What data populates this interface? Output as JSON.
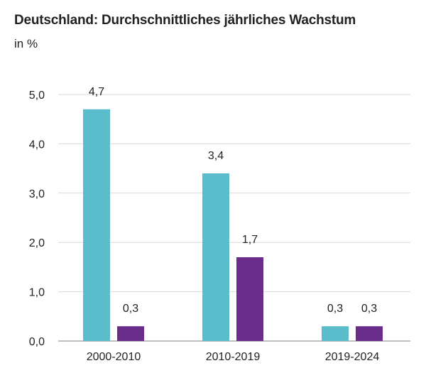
{
  "chart_data": {
    "type": "bar",
    "title": "Deutschland: Durchschnittliches jährliches Wachstum",
    "subtitle": "in %",
    "categories": [
      "2000-2010",
      "2010-2019",
      "2019-2024"
    ],
    "series": [
      {
        "values": [
          4.7,
          3.4,
          0.3
        ],
        "labels": [
          "4,7",
          "3,4",
          "0,3"
        ],
        "color": "#5bbccb"
      },
      {
        "values": [
          0.3,
          1.7,
          0.3
        ],
        "labels": [
          "0,3",
          "1,7",
          "0,3"
        ],
        "color": "#6a2d8b"
      }
    ],
    "yticks": [
      0,
      1,
      2,
      3,
      4,
      5
    ],
    "ytick_labels": [
      "0,0",
      "1,0",
      "2,0",
      "3,0",
      "4,0",
      "5,0"
    ],
    "ylim": [
      0,
      5
    ],
    "grid": true,
    "legend": "none",
    "xlabel": "",
    "ylabel": ""
  }
}
